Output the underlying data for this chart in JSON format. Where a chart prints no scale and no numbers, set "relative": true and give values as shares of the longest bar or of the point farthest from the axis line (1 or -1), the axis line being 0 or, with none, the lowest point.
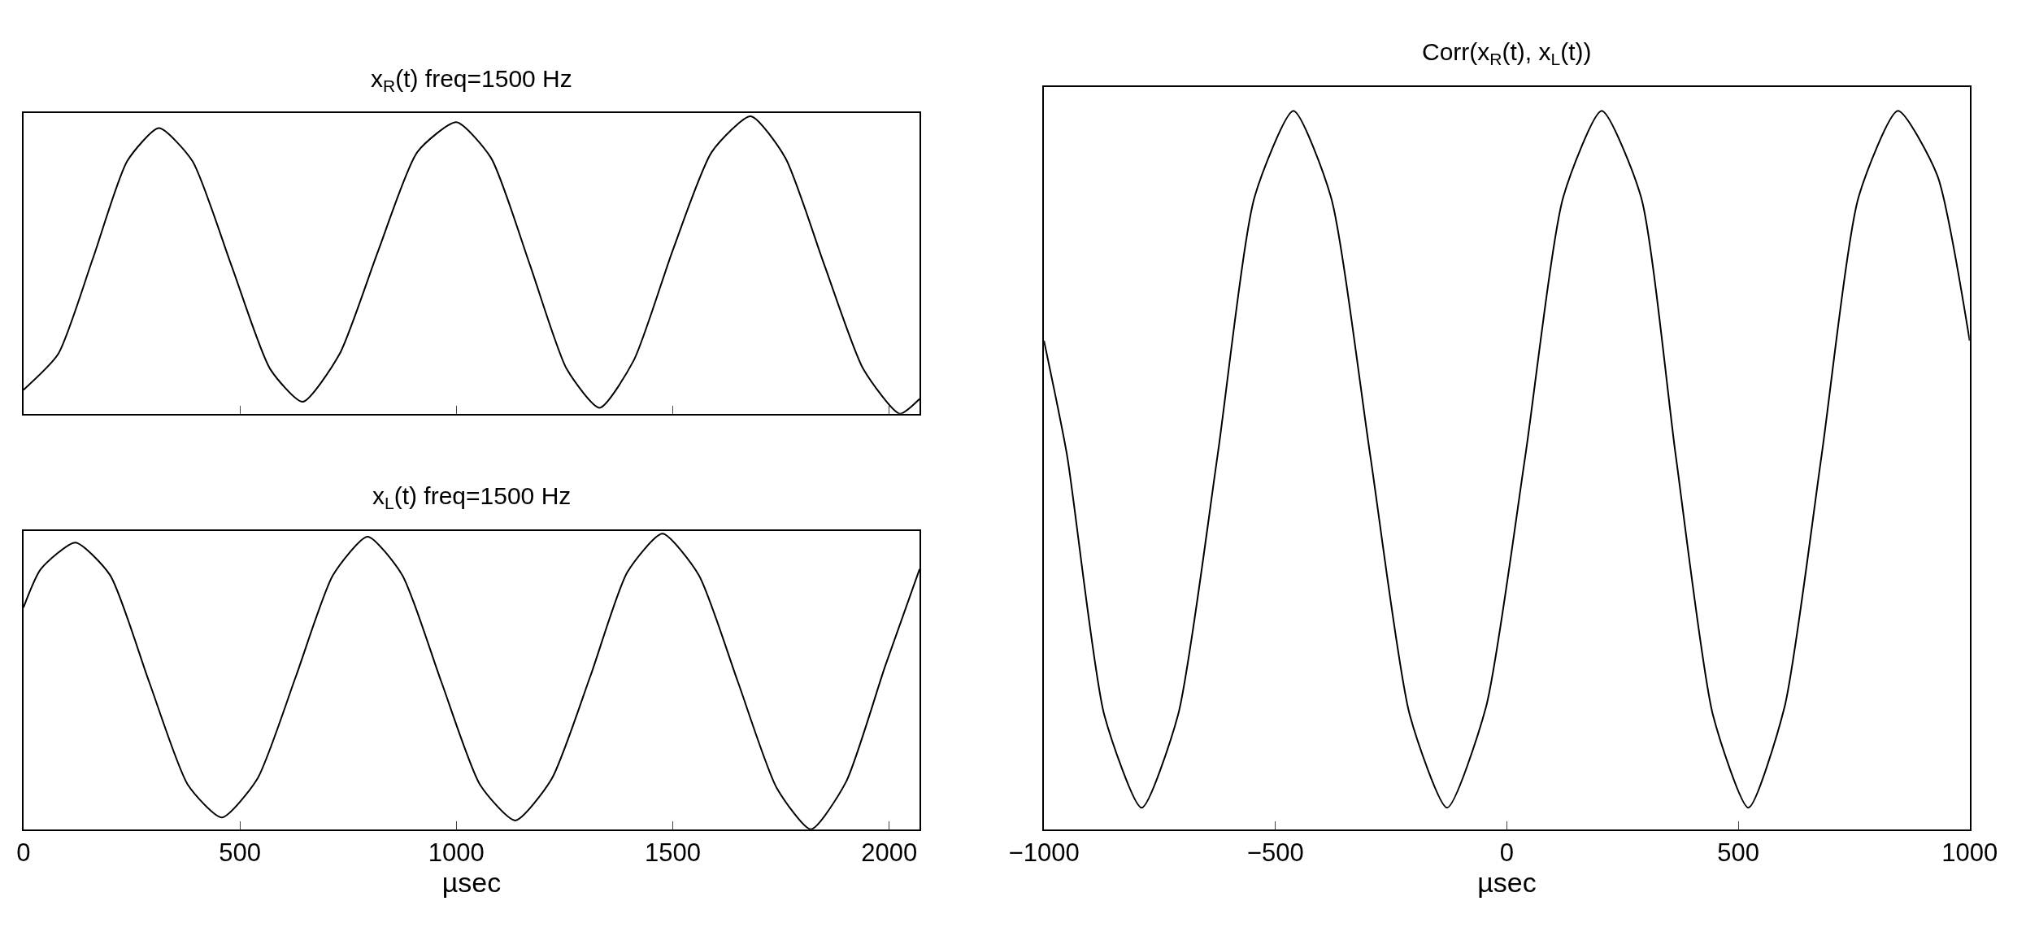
{
  "chart_data": [
    {
      "type": "line",
      "title": "x$_{R}$(t) freq=1500 Hz",
      "relative": true,
      "xlim": [
        0,
        2070
      ],
      "xticks": [
        0,
        500,
        1000,
        1500,
        2000
      ],
      "tick_labels": false,
      "x": [
        0,
        80,
        160,
        240,
        313,
        390,
        480,
        570,
        645,
        730,
        820,
        910,
        1000,
        1080,
        1170,
        1255,
        1331,
        1410,
        1500,
        1590,
        1680,
        1760,
        1850,
        1940,
        2024,
        2070
      ],
      "series": [
        {
          "color": "#000000",
          "values": [
            0.08,
            0.2,
            0.52,
            0.85,
            0.96,
            0.85,
            0.5,
            0.15,
            0.04,
            0.2,
            0.55,
            0.88,
            0.98,
            0.86,
            0.5,
            0.15,
            0.02,
            0.18,
            0.55,
            0.88,
            1.0,
            0.86,
            0.5,
            0.15,
            0.0,
            0.05
          ]
        }
      ]
    },
    {
      "type": "line",
      "title": "x$_{L}$(t) freq=1500 Hz",
      "xlabel": "µsec",
      "relative": true,
      "xlim": [
        0,
        2070
      ],
      "xticks": [
        0,
        500,
        1000,
        1500,
        2000
      ],
      "tick_labels": "x",
      "x": [
        0,
        40,
        120,
        200,
        290,
        380,
        458,
        540,
        630,
        715,
        795,
        875,
        965,
        1055,
        1136,
        1220,
        1310,
        1395,
        1476,
        1560,
        1650,
        1740,
        1819,
        1900,
        1990,
        2070
      ],
      "series": [
        {
          "color": "#000000",
          "values": [
            0.75,
            0.88,
            0.97,
            0.86,
            0.5,
            0.15,
            0.04,
            0.17,
            0.52,
            0.86,
            0.99,
            0.86,
            0.5,
            0.15,
            0.03,
            0.17,
            0.52,
            0.87,
            1.0,
            0.86,
            0.5,
            0.14,
            0.0,
            0.16,
            0.55,
            0.88
          ]
        }
      ]
    },
    {
      "type": "line",
      "title": "Corr(x$_{R}$(t), x$_{L}$(t))",
      "xlabel": "µsec",
      "relative": true,
      "xlim": [
        -1000,
        1000
      ],
      "xticks": [
        {
          "value": -1000,
          "label": "−1000"
        },
        {
          "value": -500,
          "label": "−500"
        },
        0,
        500,
        1000
      ],
      "tick_labels": "x",
      "x": [
        -1000,
        -950,
        -870,
        -789,
        -710,
        -625,
        -545,
        -461,
        -380,
        -295,
        -210,
        -129,
        -45,
        40,
        122,
        205,
        290,
        365,
        445,
        522,
        600,
        680,
        760,
        845,
        930,
        1000
      ],
      "series": [
        {
          "color": "#000000",
          "values": [
            0.68,
            0.52,
            0.16,
            0.03,
            0.16,
            0.52,
            0.88,
            1.0,
            0.88,
            0.52,
            0.16,
            0.03,
            0.17,
            0.52,
            0.88,
            1.0,
            0.88,
            0.52,
            0.16,
            0.03,
            0.17,
            0.52,
            0.88,
            1.0,
            0.91,
            0.68
          ]
        }
      ]
    }
  ]
}
